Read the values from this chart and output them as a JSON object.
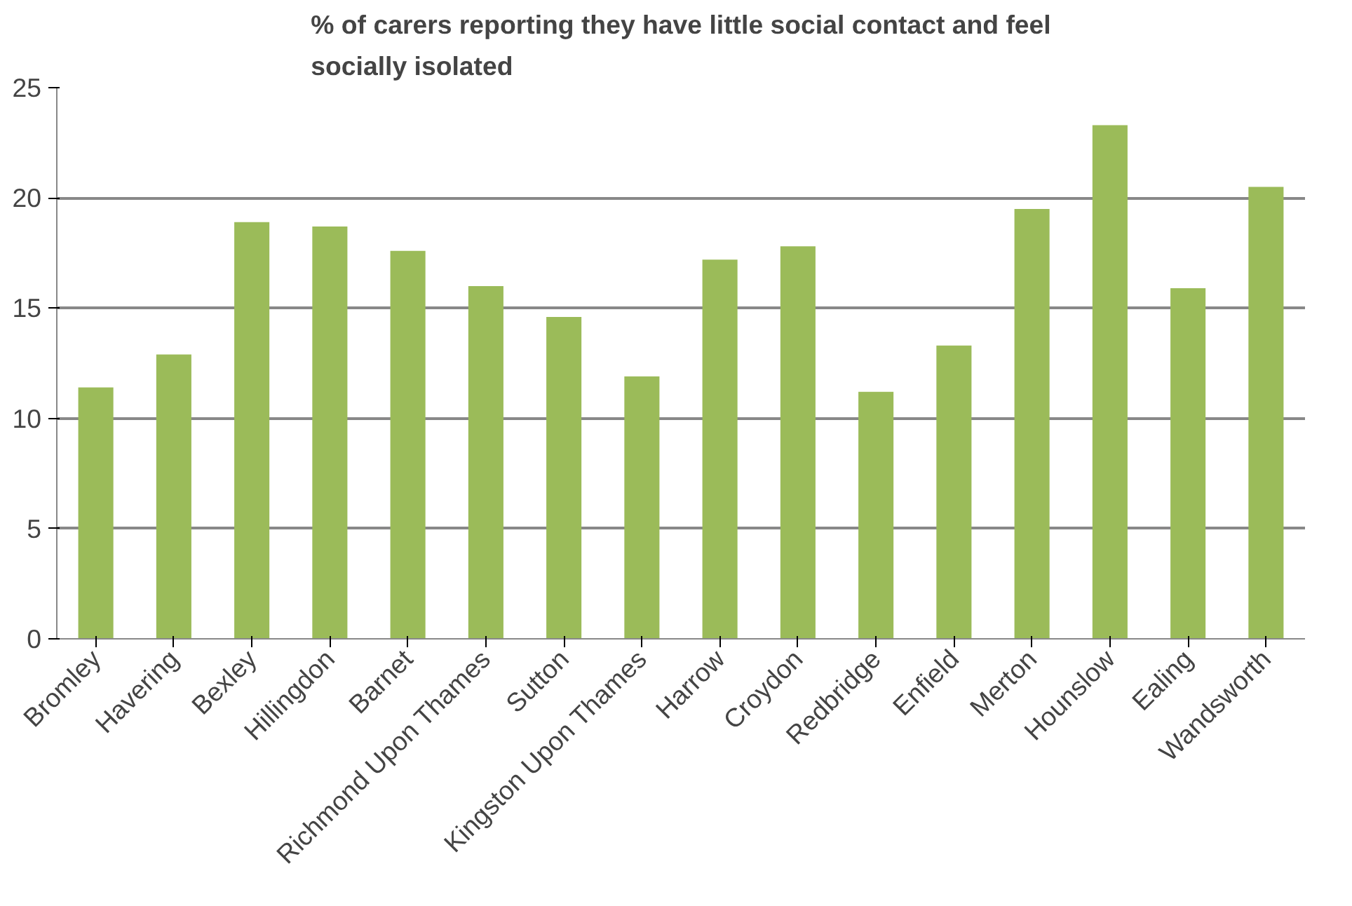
{
  "chart_data": {
    "type": "bar",
    "title": "% of carers reporting they have little social contact and feel\nsocially isolated",
    "categories": [
      "Bromley",
      "Havering",
      "Bexley",
      "Hillingdon",
      "Barnet",
      "Richmond Upon Thames",
      "Sutton",
      "Kingston Upon Thames",
      "Harrow",
      "Croydon",
      "Redbridge",
      "Enfield",
      "Merton",
      "Hounslow",
      "Ealing",
      "Wandsworth"
    ],
    "values": [
      11.4,
      12.9,
      18.9,
      18.7,
      17.6,
      16.0,
      14.6,
      11.9,
      17.2,
      17.8,
      11.2,
      13.3,
      19.5,
      23.3,
      15.9,
      20.5
    ],
    "color": "#9bbb59",
    "ylim": [
      0,
      25
    ],
    "yticks": [
      0,
      5,
      10,
      15,
      20,
      25
    ],
    "grid": "y"
  }
}
